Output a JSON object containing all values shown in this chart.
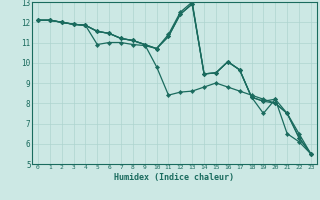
{
  "title": "",
  "xlabel": "Humidex (Indice chaleur)",
  "ylabel": "",
  "bg_color": "#cce8e4",
  "line_color": "#1a6b5e",
  "grid_color": "#aed4cf",
  "xlim": [
    -0.5,
    23.5
  ],
  "ylim": [
    5,
    13
  ],
  "xticks": [
    0,
    1,
    2,
    3,
    4,
    5,
    6,
    7,
    8,
    9,
    10,
    11,
    12,
    13,
    14,
    15,
    16,
    17,
    18,
    19,
    20,
    21,
    22,
    23
  ],
  "yticks": [
    5,
    6,
    7,
    8,
    9,
    10,
    11,
    12,
    13
  ],
  "series": [
    {
      "x": [
        0,
        1,
        2,
        3,
        4,
        5,
        6,
        7,
        8,
        9,
        10,
        11,
        12,
        13,
        14,
        15,
        16,
        17,
        18,
        19,
        20,
        21,
        22,
        23
      ],
      "y": [
        12.1,
        12.1,
        12.0,
        11.9,
        11.85,
        11.55,
        11.45,
        11.2,
        11.1,
        10.9,
        10.7,
        11.3,
        12.4,
        12.9,
        9.45,
        9.5,
        10.05,
        9.65,
        8.3,
        8.1,
        8.2,
        7.5,
        6.3,
        5.5
      ]
    },
    {
      "x": [
        0,
        1,
        2,
        3,
        4,
        5,
        6,
        7,
        8,
        9,
        10,
        11,
        12,
        13,
        14,
        15,
        16,
        17,
        18,
        19,
        20,
        21,
        22,
        23
      ],
      "y": [
        12.1,
        12.1,
        12.0,
        11.9,
        11.85,
        10.9,
        11.0,
        11.0,
        10.9,
        10.85,
        10.7,
        11.4,
        12.5,
        13.0,
        9.45,
        9.5,
        10.05,
        9.65,
        8.3,
        7.5,
        8.2,
        6.5,
        6.1,
        5.5
      ]
    },
    {
      "x": [
        0,
        1,
        2,
        3,
        4,
        5,
        6,
        7,
        8,
        9,
        10,
        11,
        12,
        13,
        14,
        15,
        16,
        17,
        18,
        19,
        20,
        21,
        22,
        23
      ],
      "y": [
        12.1,
        12.1,
        12.0,
        11.9,
        11.85,
        11.55,
        11.45,
        11.2,
        11.1,
        10.9,
        9.8,
        8.4,
        8.55,
        8.6,
        8.8,
        9.0,
        8.8,
        8.6,
        8.4,
        8.2,
        8.0,
        7.5,
        6.5,
        5.5
      ]
    },
    {
      "x": [
        0,
        1,
        2,
        3,
        4,
        5,
        6,
        7,
        8,
        9,
        10,
        11,
        12,
        13,
        14,
        15,
        16,
        17,
        18,
        19,
        20,
        21,
        22,
        23
      ],
      "y": [
        12.1,
        12.1,
        12.0,
        11.9,
        11.85,
        11.55,
        11.45,
        11.2,
        11.1,
        10.9,
        10.7,
        11.3,
        12.4,
        12.9,
        9.45,
        9.5,
        10.05,
        9.65,
        8.3,
        8.1,
        8.0,
        7.5,
        6.3,
        5.5
      ]
    }
  ]
}
